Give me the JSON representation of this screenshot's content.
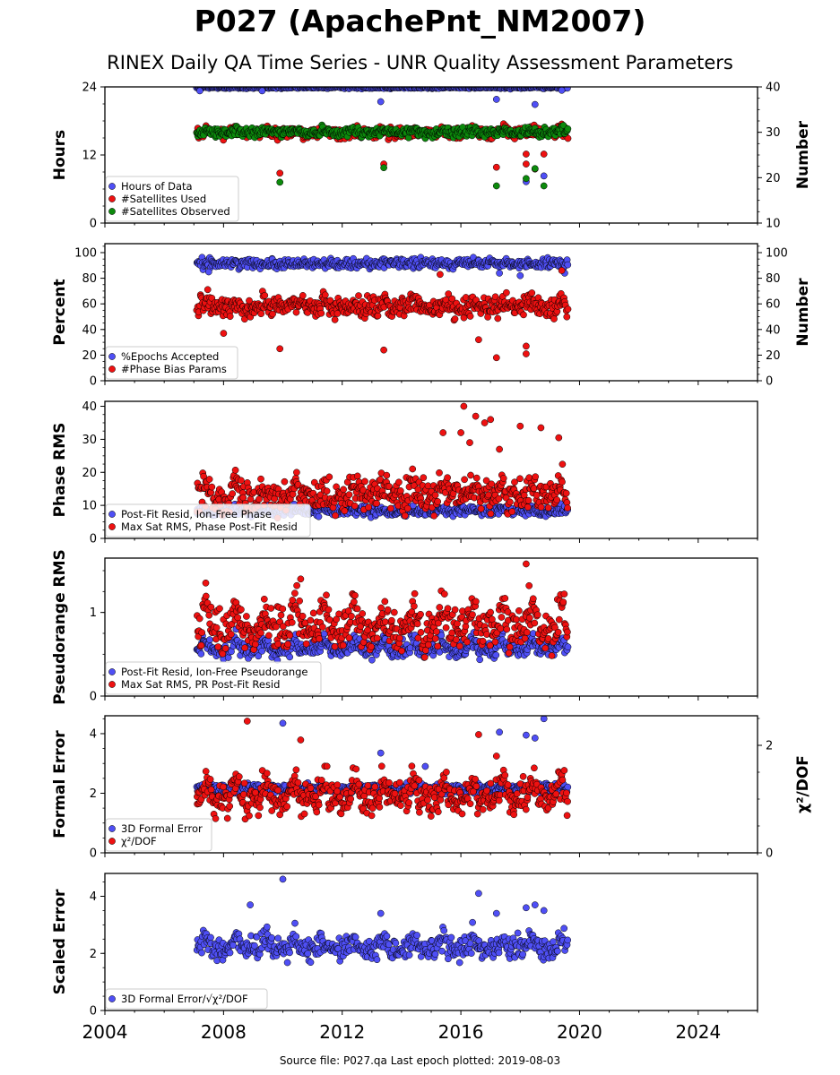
{
  "page": {
    "title": "P027 (ApachePnt_NM2007)",
    "subtitle": "RINEX Daily QA Time Series - UNR Quality Assessment Parameters",
    "footer": "Source file: P027.qa Last epoch plotted: 2019-08-03"
  },
  "colors": {
    "blue": "#4f4ff5",
    "red": "#ee1111",
    "green": "#0c8a0c"
  },
  "chart_data": [
    {
      "type": "scatter",
      "xlim": [
        2004,
        2026
      ],
      "x_ticks": [
        "2004",
        "2008",
        "2012",
        "2016",
        "2020",
        "2024"
      ],
      "ylabel": "Hours",
      "ylim": [
        0,
        24
      ],
      "y_ticks": [
        "0",
        "12",
        "24"
      ],
      "ylabel_right": "Number",
      "ylim_right": [
        10,
        40
      ],
      "y_ticks_right": [
        "10",
        "20",
        "30",
        "40"
      ],
      "legend": "lower-left",
      "series": [
        {
          "name": "Hours of Data",
          "axis": "left",
          "color": "blue",
          "x_range": [
            2007.1,
            2019.6
          ],
          "base": 23.9,
          "noise": 0.1,
          "outliers": [
            [
              2007.2,
              23.3
            ],
            [
              2009.3,
              23.3
            ],
            [
              2013.3,
              21.4
            ],
            [
              2017.2,
              21.8
            ],
            [
              2018.2,
              7.3
            ],
            [
              2018.5,
              20.9
            ],
            [
              2018.8,
              8.3
            ],
            [
              2019.4,
              23.4
            ]
          ]
        },
        {
          "name": "#Satellites Used",
          "axis": "right",
          "color": "red",
          "x_range": [
            2007.1,
            2019.6
          ],
          "base": 29.8,
          "amp": 0.6,
          "noise": 0.6,
          "outliers": [
            [
              2009.9,
              21
            ],
            [
              2013.4,
              23
            ],
            [
              2017.2,
              22.3
            ],
            [
              2018.2,
              25.2
            ],
            [
              2018.2,
              23
            ],
            [
              2018.5,
              21.9
            ],
            [
              2018.8,
              25.2
            ],
            [
              2019.4,
              31.8
            ]
          ]
        },
        {
          "name": "#Satellites Observed",
          "axis": "right",
          "color": "green",
          "x_range": [
            2007.1,
            2019.6
          ],
          "base": 29.9,
          "amp": 0.6,
          "noise": 0.5,
          "outliers": [
            [
              2009.9,
              19
            ],
            [
              2013.4,
              22.2
            ],
            [
              2017.2,
              18.2
            ],
            [
              2018.2,
              19.8
            ],
            [
              2018.5,
              22
            ],
            [
              2018.8,
              18.2
            ]
          ]
        }
      ]
    },
    {
      "type": "scatter",
      "xlim": [
        2004,
        2026
      ],
      "ylabel": "Percent",
      "ylim": [
        0,
        107
      ],
      "y_ticks": [
        "0",
        "20",
        "40",
        "60",
        "80",
        "100"
      ],
      "ylabel_right": "Number",
      "ylim_right": [
        0,
        107
      ],
      "y_ticks_right": [
        "0",
        "20",
        "40",
        "60",
        "80",
        "100"
      ],
      "legend": "lower-left",
      "series": [
        {
          "name": "%Epochs Accepted",
          "axis": "left",
          "color": "blue",
          "x_range": [
            2007.1,
            2019.6
          ],
          "base": 91.5,
          "noise": 1.8,
          "outliers": [
            [
              2007.5,
              85
            ],
            [
              2017.3,
              84
            ],
            [
              2018.0,
              82
            ],
            [
              2019.5,
              84
            ]
          ]
        },
        {
          "name": "#Phase Bias Params",
          "axis": "right",
          "color": "red",
          "x_range": [
            2007.1,
            2019.6
          ],
          "base": 57,
          "amp": 5,
          "noise": 4,
          "outliers": [
            [
              2008.0,
              37
            ],
            [
              2009.9,
              25
            ],
            [
              2013.4,
              24
            ],
            [
              2016.6,
              32
            ],
            [
              2017.2,
              18
            ],
            [
              2018.2,
              21
            ],
            [
              2018.2,
              27
            ],
            [
              2015.3,
              83
            ],
            [
              2019.4,
              86
            ]
          ]
        }
      ]
    },
    {
      "type": "scatter",
      "xlim": [
        2004,
        2026
      ],
      "ylabel": "Phase RMS",
      "ylim": [
        0,
        41.5
      ],
      "y_ticks": [
        "0",
        "10",
        "20",
        "30",
        "40"
      ],
      "legend": "lower-left",
      "series": [
        {
          "name": "Post-Fit Resid, Ion-Free Phase",
          "axis": "left",
          "color": "blue",
          "x_range": [
            2007.1,
            2019.6
          ],
          "base": 8.2,
          "amp": 0.7,
          "noise": 0.7
        },
        {
          "name": "Max Sat RMS, Phase Post-Fit Resid",
          "axis": "left",
          "color": "red",
          "x_range": [
            2007.1,
            2019.6
          ],
          "base": 12.5,
          "amp": 3.5,
          "noise": 2.5,
          "outliers": [
            [
              2016.1,
              40
            ],
            [
              2016.5,
              37
            ],
            [
              2016.8,
              35
            ],
            [
              2017.0,
              36
            ],
            [
              2015.4,
              32
            ],
            [
              2016.0,
              32
            ],
            [
              2016.3,
              29
            ],
            [
              2018.0,
              34
            ],
            [
              2018.7,
              33.5
            ],
            [
              2019.3,
              30.5
            ],
            [
              2017.3,
              27
            ]
          ]
        }
      ]
    },
    {
      "type": "scatter",
      "xlim": [
        2004,
        2026
      ],
      "ylabel": "Pseudorange RMS",
      "ylim": [
        0,
        1.65
      ],
      "y_ticks": [
        "0",
        "1"
      ],
      "legend": "lower-left",
      "series": [
        {
          "name": "Post-Fit Resid, Ion-Free Pseudorange",
          "axis": "left",
          "color": "blue",
          "x_range": [
            2007.1,
            2019.6
          ],
          "base": 0.55,
          "amp": 0.13,
          "noise": 0.05
        },
        {
          "name": "Max Sat RMS, PR Post-Fit Resid",
          "axis": "left",
          "color": "red",
          "x_range": [
            2007.1,
            2019.6
          ],
          "base": 0.78,
          "amp": 0.3,
          "noise": 0.12,
          "outliers": [
            [
              2018.2,
              1.58
            ],
            [
              2018.3,
              1.32
            ],
            [
              2010.6,
              1.4
            ]
          ]
        }
      ]
    },
    {
      "type": "scatter",
      "xlim": [
        2004,
        2026
      ],
      "ylabel": "Formal Error",
      "ylim": [
        0,
        4.6
      ],
      "y_ticks": [
        "0",
        "2",
        "4"
      ],
      "ylabel_right": "χ²/DOF",
      "ylim_right": [
        0,
        2.55
      ],
      "y_ticks_right": [
        "0",
        "2"
      ],
      "legend": "lower-left",
      "series": [
        {
          "name": "3D Formal Error",
          "axis": "left",
          "color": "blue",
          "x_range": [
            2007.1,
            2019.6
          ],
          "base": 2.15,
          "noise": 0.08,
          "outliers": [
            [
              2010.0,
              4.35
            ],
            [
              2013.3,
              3.35
            ],
            [
              2017.3,
              4.05
            ],
            [
              2018.2,
              3.95
            ],
            [
              2018.5,
              3.85
            ],
            [
              2018.8,
              4.5
            ],
            [
              2014.8,
              2.9
            ]
          ]
        },
        {
          "name": "χ²/DOF",
          "axis": "right",
          "color": "red",
          "x_range": [
            2007.1,
            2019.6
          ],
          "base": 1.0,
          "amp": 0.35,
          "noise": 0.15,
          "outliers": [
            [
              2008.8,
              2.45
            ],
            [
              2010.6,
              2.1
            ],
            [
              2016.6,
              2.2
            ],
            [
              2017.2,
              1.8
            ]
          ]
        }
      ]
    },
    {
      "type": "scatter",
      "xlim": [
        2004,
        2026
      ],
      "ylabel": "Scaled Error",
      "ylim": [
        0,
        4.8
      ],
      "y_ticks": [
        "0",
        "2",
        "4"
      ],
      "legend": "lower-left",
      "series": [
        {
          "name": "3D Formal Error/√χ²/DOF",
          "axis": "left",
          "color": "blue",
          "x_range": [
            2007.1,
            2019.6
          ],
          "base": 2.15,
          "amp": 0.4,
          "noise": 0.2,
          "outliers": [
            [
              2010.0,
              4.6
            ],
            [
              2016.6,
              4.1
            ],
            [
              2008.9,
              3.7
            ],
            [
              2013.3,
              3.4
            ],
            [
              2017.2,
              3.4
            ],
            [
              2018.2,
              3.6
            ],
            [
              2018.5,
              3.7
            ],
            [
              2018.8,
              3.5
            ]
          ]
        }
      ]
    }
  ]
}
